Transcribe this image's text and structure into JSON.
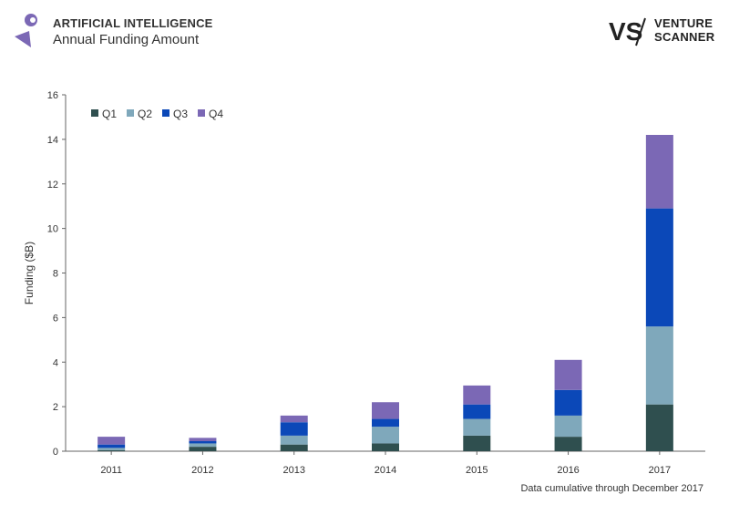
{
  "header": {
    "title": "ARTIFICIAL INTELLIGENCE",
    "subtitle": "Annual Funding Amount"
  },
  "brand": {
    "line1": "VENTURE",
    "line2": "SCANNER",
    "mark": "VS"
  },
  "footnote": "Data cumulative through December 2017",
  "chart_data": {
    "type": "bar",
    "stacked": true,
    "categories": [
      "2011",
      "2012",
      "2013",
      "2014",
      "2015",
      "2016",
      "2017"
    ],
    "ylabel": "Funding ($B)",
    "xlabel": "",
    "ylim": [
      0,
      16
    ],
    "yticks": [
      0,
      2,
      4,
      6,
      8,
      10,
      12,
      14,
      16
    ],
    "grid": false,
    "legend_position": "top-left",
    "series": [
      {
        "name": "Q1",
        "color": "#2f4f4f",
        "values": [
          0.05,
          0.2,
          0.3,
          0.35,
          0.7,
          0.65,
          2.1
        ]
      },
      {
        "name": "Q2",
        "color": "#7fa8bb",
        "values": [
          0.1,
          0.15,
          0.4,
          0.75,
          0.75,
          0.95,
          3.5
        ]
      },
      {
        "name": "Q3",
        "color": "#0b48b8",
        "values": [
          0.15,
          0.1,
          0.6,
          0.35,
          0.65,
          1.15,
          5.3
        ]
      },
      {
        "name": "Q4",
        "color": "#7b68b5",
        "values": [
          0.35,
          0.15,
          0.3,
          0.75,
          0.85,
          1.35,
          3.3
        ]
      }
    ]
  }
}
